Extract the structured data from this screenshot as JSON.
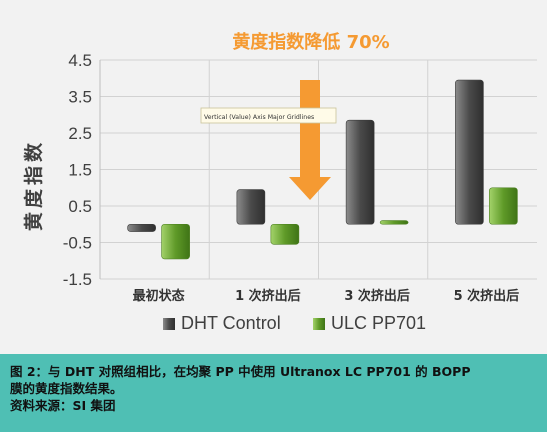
{
  "chart_data": {
    "type": "bar",
    "annotation": "黄度指数降低 70%",
    "tooltip": "Vertical (Value) Axis Major Gridlines",
    "ylabel": "黄度指数",
    "xlabel": "",
    "ylim": [
      -1.5,
      4.5
    ],
    "yticks": [
      "4.5",
      "3.5",
      "2.5",
      "1.5",
      "0.5",
      "-0.5",
      "-1.5"
    ],
    "ytick_values": [
      4.5,
      3.5,
      2.5,
      1.5,
      0.5,
      -0.5,
      -1.5
    ],
    "categories": [
      "最初状态",
      "1 次挤出后",
      "3 次挤出后",
      "5 次挤出后"
    ],
    "series": [
      {
        "name": "DHT Control",
        "color": "#5a5a5a",
        "values": [
          -0.2,
          0.95,
          2.85,
          3.95
        ]
      },
      {
        "name": "ULC PP701",
        "color": "#6aa130",
        "values": [
          -0.95,
          -0.55,
          0.1,
          1.0
        ]
      }
    ],
    "grid": true,
    "legend_position": "bottom",
    "accent_color": "#f59a32"
  },
  "caption": {
    "line1": "图 2：与 DHT 对照组相比，在均聚 PP 中使用 Ultranox LC PP701 的 BOPP",
    "line2": "膜的黄度指数结果。",
    "source": "资料来源：SI 集团"
  }
}
